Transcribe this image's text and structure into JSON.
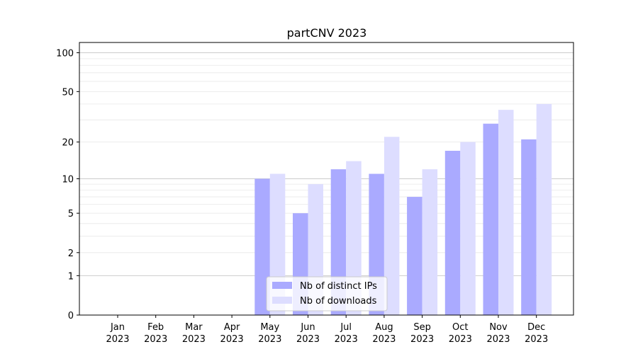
{
  "chart_data": {
    "type": "bar",
    "title": "partCNV 2023",
    "xlabel": "",
    "ylabel": "",
    "categories": [
      [
        "Jan",
        "2023"
      ],
      [
        "Feb",
        "2023"
      ],
      [
        "Mar",
        "2023"
      ],
      [
        "Apr",
        "2023"
      ],
      [
        "May",
        "2023"
      ],
      [
        "Jun",
        "2023"
      ],
      [
        "Jul",
        "2023"
      ],
      [
        "Aug",
        "2023"
      ],
      [
        "Sep",
        "2023"
      ],
      [
        "Oct",
        "2023"
      ],
      [
        "Nov",
        "2023"
      ],
      [
        "Dec",
        "2023"
      ]
    ],
    "series": [
      {
        "name": "Nb of distinct IPs",
        "color": "#aaaaff",
        "values": [
          0,
          0,
          0,
          0,
          10,
          5,
          12,
          11,
          7,
          17,
          28,
          21
        ]
      },
      {
        "name": "Nb of downloads",
        "color": "#ddddff",
        "values": [
          0,
          0,
          0,
          0,
          11,
          9,
          14,
          22,
          12,
          20,
          36,
          40
        ]
      }
    ],
    "y_scale": "symlog",
    "ylim": [
      0,
      120
    ],
    "y_ticks": [
      "0",
      "1",
      "2",
      "5",
      "10",
      "20",
      "50",
      "100"
    ],
    "grid": true,
    "legend_position": "lower center"
  }
}
